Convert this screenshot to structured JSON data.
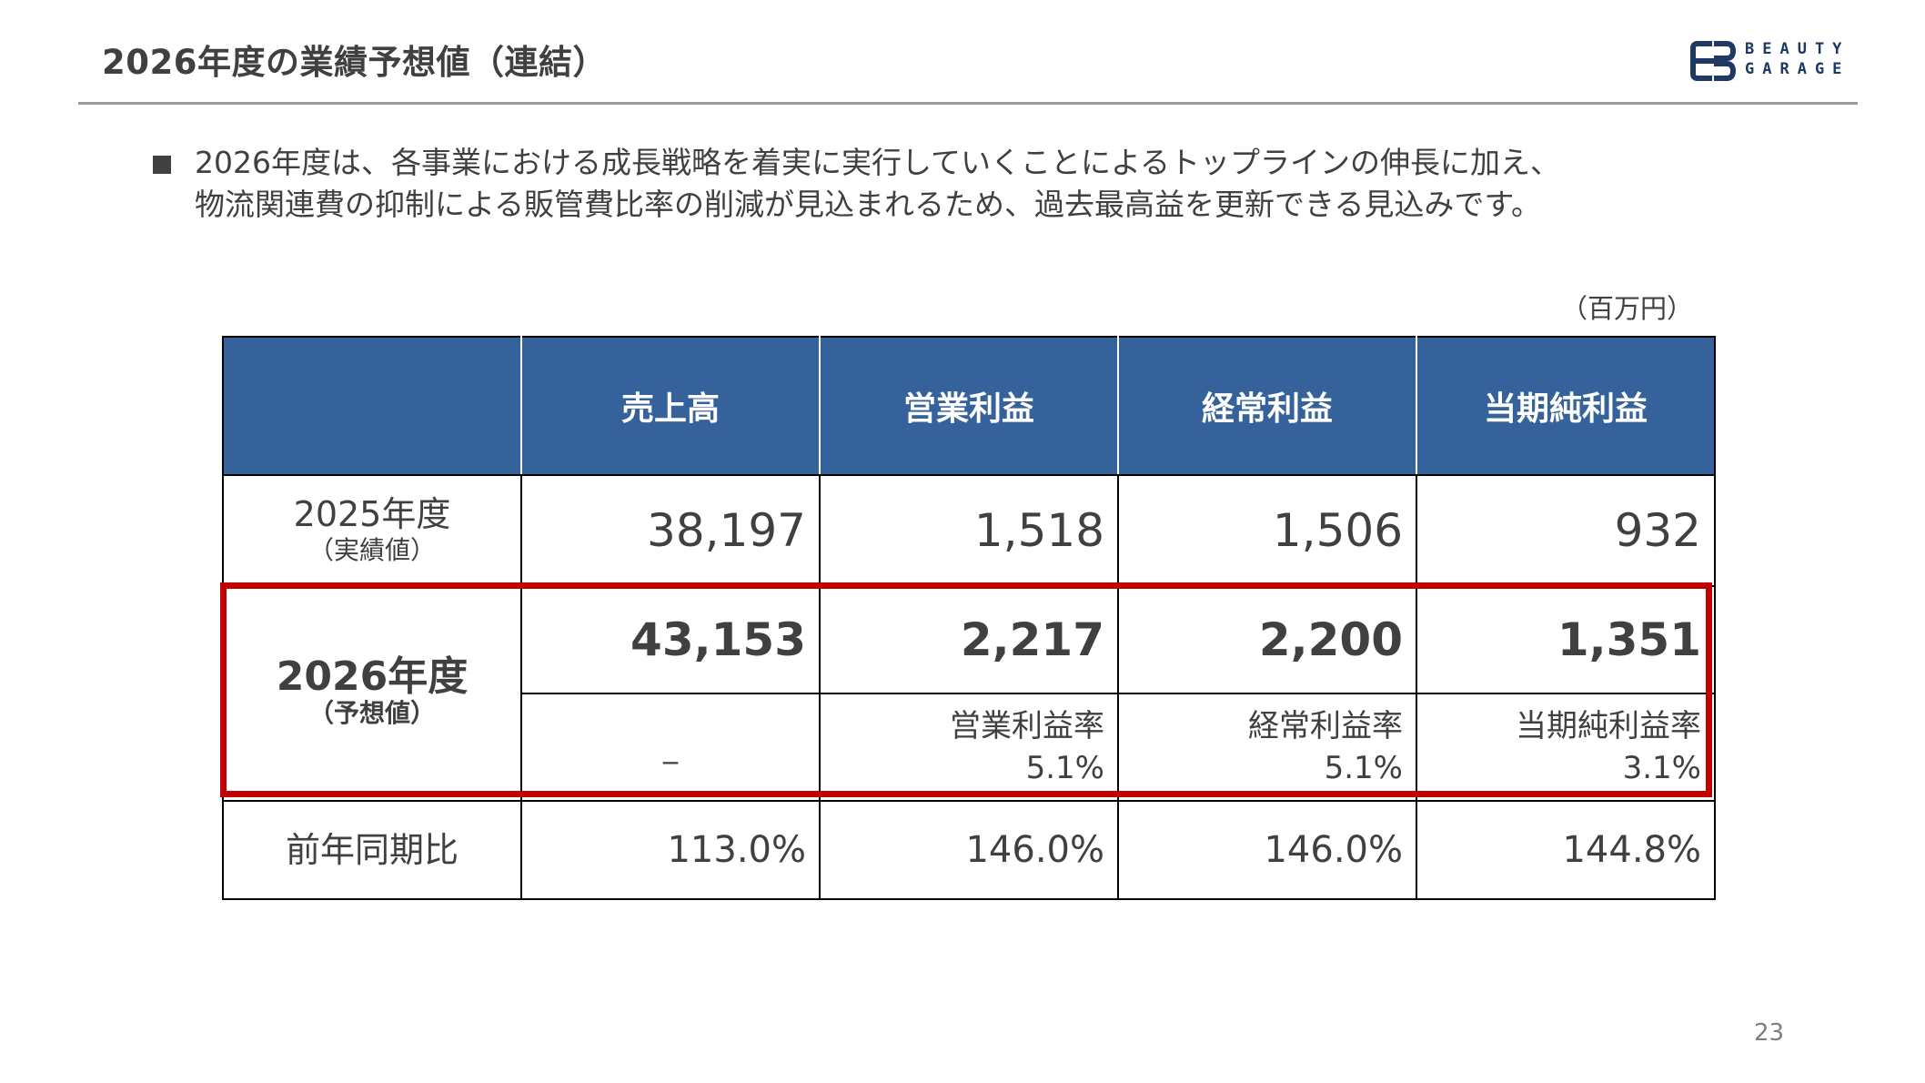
{
  "title": "2026年度の業績予想値（連結）",
  "logo": {
    "line1": "BEAUTY",
    "line2": "GARAGE",
    "color": "#1f3864"
  },
  "bullet": {
    "line1": "2026年度は、各事業における成長戦略を着実に実行していくことによるトップラインの伸長に加え、",
    "line2": "物流関連費の抑制による販管費比率の削減が見込まれるため、過去最高益を更新できる見込みです。"
  },
  "unit": "（百万円）",
  "table": {
    "headers": [
      "",
      "売上高",
      "営業利益",
      "経常利益",
      "当期純利益"
    ],
    "fy2025": {
      "label": "2025年度",
      "sub": "（実績値）",
      "values": [
        "38,197",
        "1,518",
        "1,506",
        "932"
      ]
    },
    "fy2026": {
      "label": "2026年度",
      "sub": "（予想値）",
      "values": [
        "43,153",
        "2,217",
        "2,200",
        "1,351"
      ],
      "ratios": [
        {
          "label": "_",
          "value": ""
        },
        {
          "label": "営業利益率",
          "value": "5.1%"
        },
        {
          "label": "経常利益率",
          "value": "5.1%"
        },
        {
          "label": "当期純利益率",
          "value": "3.1%"
        }
      ]
    },
    "yoy": {
      "label": "前年同期比",
      "values": [
        "113.0%",
        "146.0%",
        "146.0%",
        "144.8%"
      ]
    }
  },
  "colors": {
    "header_bg": "#36629b",
    "highlight": "#c00000",
    "text": "#404040"
  },
  "page_number": "23"
}
